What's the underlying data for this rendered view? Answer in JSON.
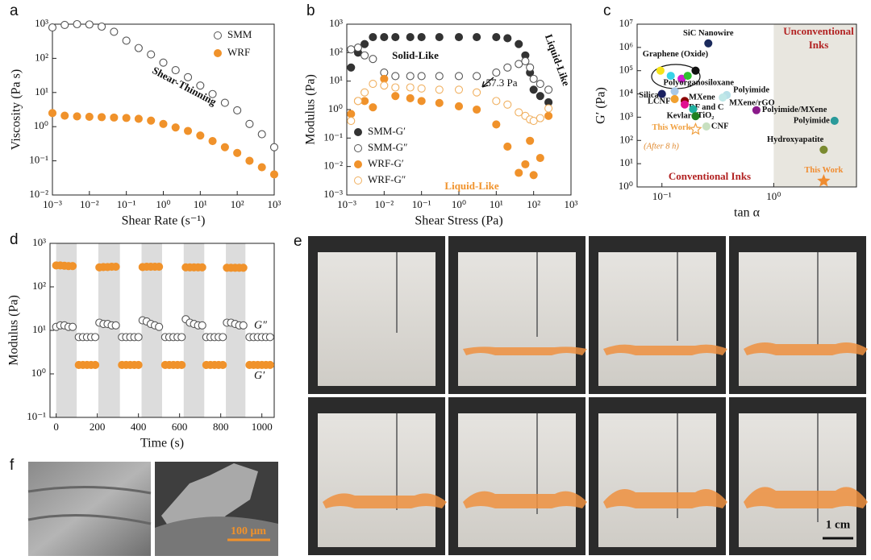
{
  "panel_labels": [
    "a",
    "b",
    "c",
    "d",
    "e",
    "f"
  ],
  "photos": {
    "e_scale_bar": "1 cm",
    "f_scale_bar": "100 μm"
  },
  "chart_data": [
    {
      "type": "scatter",
      "xlog": true,
      "ylog": true,
      "xlabel": "Shear Rate (s⁻¹)",
      "ylabel": "Viscosity (Pa s)",
      "xlim": [
        0.001,
        1000
      ],
      "ylim": [
        0.01,
        1000
      ],
      "xticks": [
        {
          "value": 0.001,
          "label": "10⁻³"
        },
        {
          "value": 0.01,
          "label": "10⁻²"
        },
        {
          "value": 0.1,
          "label": "10⁻¹"
        },
        {
          "value": 1,
          "label": "10⁰"
        },
        {
          "value": 10,
          "label": "10¹"
        },
        {
          "value": 100,
          "label": "10²"
        },
        {
          "value": 1000,
          "label": "10³"
        }
      ],
      "yticks": [
        {
          "value": 0.01,
          "label": "10⁻²"
        },
        {
          "value": 0.1,
          "label": "10⁻¹"
        },
        {
          "value": 1,
          "label": "10⁰"
        },
        {
          "value": 10,
          "label": "10¹"
        },
        {
          "value": 100,
          "label": "10²"
        },
        {
          "value": 1000,
          "label": "10³"
        }
      ],
      "legend": "upper right",
      "annotations": [
        {
          "text": "Shear-Thinning"
        }
      ],
      "x": [
        0.001,
        0.00215,
        0.00464,
        0.01,
        0.0215,
        0.0464,
        0.1,
        0.215,
        0.464,
        1,
        2.15,
        4.64,
        10,
        21.5,
        46.4,
        100,
        215,
        464,
        1000
      ],
      "series": [
        {
          "name": "SMM",
          "color": "#555555",
          "marker": "open",
          "values": [
            800,
            950,
            1000,
            980,
            850,
            600,
            330,
            200,
            130,
            75,
            45,
            28,
            16,
            9,
            5,
            3,
            1.2,
            0.6,
            0.25
          ]
        },
        {
          "name": "WRF",
          "color": "#f0922b",
          "marker": "filled",
          "values": [
            2.5,
            2.1,
            2.0,
            1.95,
            1.9,
            1.85,
            1.8,
            1.7,
            1.5,
            1.2,
            0.95,
            0.75,
            0.55,
            0.38,
            0.25,
            0.17,
            0.1,
            0.065,
            0.04
          ]
        }
      ]
    },
    {
      "type": "scatter",
      "xlog": true,
      "ylog": true,
      "xlabel": "Shear Stress (Pa)",
      "ylabel": "Modulus (Pa)",
      "xlim": [
        0.001,
        1000
      ],
      "ylim": [
        0.001,
        1000
      ],
      "xticks": [
        {
          "value": 0.001,
          "label": "10⁻³"
        },
        {
          "value": 0.01,
          "label": "10⁻²"
        },
        {
          "value": 0.1,
          "label": "10⁻¹"
        },
        {
          "value": 1,
          "label": "10⁰"
        },
        {
          "value": 10,
          "label": "10¹"
        },
        {
          "value": 100,
          "label": "10²"
        },
        {
          "value": 1000,
          "label": "10³"
        }
      ],
      "yticks": [
        {
          "value": 0.001,
          "label": "10⁻³"
        },
        {
          "value": 0.01,
          "label": "10⁻²"
        },
        {
          "value": 0.1,
          "label": "10⁻¹"
        },
        {
          "value": 1,
          "label": "10⁰"
        },
        {
          "value": 10,
          "label": "10¹"
        },
        {
          "value": 100,
          "label": "10²"
        },
        {
          "value": 1000,
          "label": "10³"
        }
      ],
      "legend": "lower left",
      "annotations": [
        {
          "text": "Solid-Like"
        },
        {
          "text": "Liquid-Like"
        },
        {
          "text": "57.3 Pa"
        },
        {
          "text": "Liquid-Like",
          "color": "#f0922b"
        }
      ],
      "x": [
        0.0013,
        0.002,
        0.003,
        0.005,
        0.01,
        0.02,
        0.05,
        0.1,
        0.3,
        1,
        3,
        10,
        20,
        40,
        60,
        80,
        100,
        150,
        250
      ],
      "series": [
        {
          "name": "SMM-G′",
          "color": "#333333",
          "marker": "filled",
          "values": [
            30,
            100,
            200,
            350,
            350,
            350,
            350,
            350,
            350,
            350,
            350,
            350,
            320,
            200,
            80,
            20,
            5,
            3,
            1.8
          ]
        },
        {
          "name": "SMM-G″",
          "color": "#555555",
          "marker": "open",
          "values": [
            130,
            150,
            80,
            60,
            20,
            15,
            15,
            15,
            15,
            15,
            15,
            20,
            30,
            40,
            50,
            30,
            12,
            8,
            5
          ]
        },
        {
          "name": "WRF-G′",
          "color": "#f0922b",
          "marker": "filled",
          "values": [
            0.7,
            2,
            2,
            1.2,
            12,
            3,
            2.5,
            2,
            1.7,
            1.3,
            1,
            0.3,
            0.05,
            0.006,
            0.012,
            0.08,
            0.005,
            0.02,
            0.6
          ]
        },
        {
          "name": "WRF-G″",
          "color": "#f0b060",
          "marker": "open",
          "values": [
            0.4,
            2,
            4,
            8,
            7,
            6,
            6,
            5.5,
            5,
            5,
            4,
            2,
            1.5,
            0.8,
            0.6,
            0.45,
            0.4,
            0.5,
            1.1
          ]
        }
      ]
    },
    {
      "type": "scatter",
      "xlog": true,
      "ylog": true,
      "xlabel": "tan α",
      "ylabel": "G′ (Pa)",
      "xlim": [
        0.06,
        5.5
      ],
      "ylim": [
        1,
        10000000
      ],
      "xticks": [
        {
          "value": 0.1,
          "label": "10⁻¹"
        },
        {
          "value": 1,
          "label": "10⁰"
        }
      ],
      "yticks": [
        {
          "value": 1,
          "label": "10⁰"
        },
        {
          "value": 10,
          "label": "10¹"
        },
        {
          "value": 100,
          "label": "10²"
        },
        {
          "value": 1000,
          "label": "10³"
        },
        {
          "value": 10000,
          "label": "10⁴"
        },
        {
          "value": 100000,
          "label": "10⁵"
        },
        {
          "value": 1000000,
          "label": "10⁶"
        },
        {
          "value": 10000000,
          "label": "10⁷"
        }
      ],
      "shaded_from": 1,
      "annotations": [
        {
          "text": "Unconventional",
          "color": "#b22222"
        },
        {
          "text": "Inks",
          "color": "#b22222"
        },
        {
          "text": "Conventional Inks",
          "color": "#b22222"
        },
        {
          "text": "(After 8 h)",
          "color": "#e08a30"
        }
      ],
      "x": [
        0.26,
        0.097,
        0.12,
        0.15,
        0.17,
        0.2,
        0.13,
        0.1,
        0.13,
        0.16,
        0.16,
        0.19,
        0.2,
        0.25,
        0.2,
        0.38,
        0.35,
        0.7,
        3.5,
        2.8,
        2.8
      ],
      "values": [
        1500000,
        100000,
        60000,
        45000,
        60000,
        100000,
        13000,
        10000,
        6000,
        5000,
        3500,
        2200,
        1100,
        400,
        300,
        9000,
        7000,
        2000,
        700,
        40,
        1.8
      ],
      "labels": [
        "SiC Nanowire",
        null,
        null,
        null,
        null,
        "Graphene (Oxide)",
        "Polyorganosiloxane",
        "Silica",
        "LCNF",
        "MXene",
        "RF and C",
        "TiO₂",
        "Kevlar",
        "CNF",
        "This Work",
        "Polyimide",
        "MXene/rGO",
        "Polyimide/MXene",
        "Polyimide",
        "Hydroxyapatite",
        "This Work"
      ],
      "colors": [
        "#1b2a5c",
        "#f5e31a",
        "#37d3e8",
        "#d01ad0",
        "#30c030",
        "#111111",
        "#a8c8e8",
        "#1a2060",
        "#f0a030",
        "#8b0000",
        "#e01090",
        "#20b0a0",
        "#208020",
        "#c8e0c0",
        "#f0a040",
        "#b8e0e8",
        "#c0e8e8",
        "#8a1a8a",
        "#2a9a9a",
        "#7a8a30",
        "#f08c30"
      ],
      "markers": [
        "circle",
        "circle",
        "circle",
        "circle",
        "circle",
        "circle",
        "circle",
        "circle",
        "circle",
        "circle",
        "circle",
        "circle",
        "circle",
        "circle",
        "open-star",
        "circle",
        "circle",
        "circle",
        "circle",
        "circle",
        "star"
      ]
    },
    {
      "type": "scatter",
      "xlog": false,
      "ylog": true,
      "xlabel": "Time (s)",
      "ylabel": "Modulus (Pa)",
      "xlim": [
        -30,
        1060
      ],
      "ylim": [
        0.1,
        1000
      ],
      "xticks": [
        0,
        200,
        400,
        600,
        800,
        1000
      ],
      "yticks": [
        {
          "value": 0.1,
          "label": "10⁻¹"
        },
        {
          "value": 1,
          "label": "10⁰"
        },
        {
          "value": 10,
          "label": "10¹"
        },
        {
          "value": 100,
          "label": "10²"
        },
        {
          "value": 1000,
          "label": "10³"
        }
      ],
      "shaded_regions": [
        [
          0,
          100
        ],
        [
          205,
          310
        ],
        [
          415,
          515
        ],
        [
          620,
          720
        ],
        [
          825,
          920
        ]
      ],
      "legend": "end-labels",
      "x": [
        0,
        20,
        40,
        60,
        80,
        110,
        130,
        150,
        170,
        190,
        210,
        230,
        250,
        270,
        290,
        320,
        340,
        360,
        380,
        400,
        420,
        440,
        460,
        480,
        500,
        530,
        550,
        570,
        590,
        610,
        630,
        650,
        670,
        690,
        710,
        730,
        750,
        770,
        790,
        810,
        830,
        850,
        870,
        890,
        910,
        940,
        960,
        980,
        1000,
        1020,
        1040
      ],
      "series": [
        {
          "name": "G″",
          "color": "#555555",
          "marker": "open",
          "values": [
            12,
            13,
            13,
            12,
            12,
            7,
            7,
            7,
            7,
            7,
            15,
            14,
            14,
            13,
            13,
            7,
            7,
            7,
            7,
            7,
            17,
            16,
            14,
            13,
            12,
            7,
            7,
            7,
            7,
            7,
            18,
            15,
            14,
            13,
            13,
            7,
            7,
            7,
            7,
            7,
            15,
            15,
            14,
            13,
            13,
            7,
            7,
            7,
            7,
            7,
            7
          ]
        },
        {
          "name": "G′",
          "color": "#f0922b",
          "marker": "filled",
          "values": [
            310,
            310,
            305,
            300,
            300,
            1.6,
            1.6,
            1.6,
            1.6,
            1.6,
            280,
            285,
            285,
            290,
            290,
            1.6,
            1.6,
            1.6,
            1.6,
            1.6,
            285,
            290,
            290,
            290,
            290,
            1.6,
            1.6,
            1.6,
            1.6,
            1.6,
            280,
            280,
            280,
            280,
            280,
            1.6,
            1.6,
            1.6,
            1.6,
            1.6,
            275,
            275,
            275,
            275,
            275,
            1.6,
            1.6,
            1.6,
            1.6,
            1.6,
            1.6
          ]
        }
      ]
    }
  ]
}
